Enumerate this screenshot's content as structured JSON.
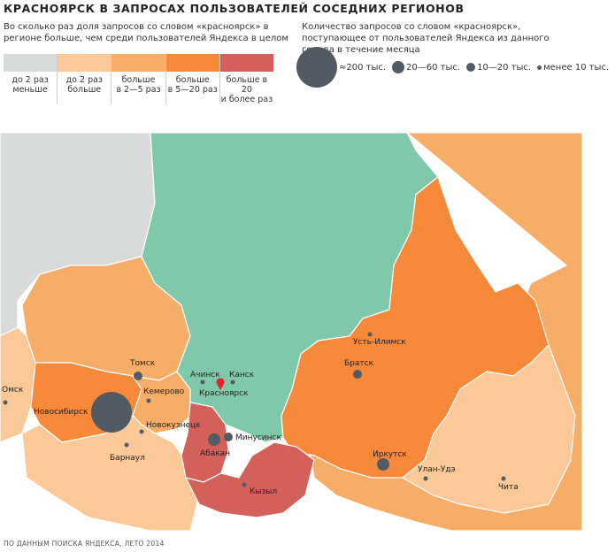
{
  "title": "КРАСНОЯРСК В ЗАПРОСАХ ПОЛЬЗОВАТЕЛЕЙ СОСЕДНИХ РЕГИОНОВ",
  "legend_ratio": {
    "description": "Во сколько раз доля запросов со словом «красноярск» в регионе больше, чем среди пользователей Яндекса в целом",
    "items": [
      {
        "color": "#d9dada",
        "line1": "до 2 раз",
        "line2": "меньше"
      },
      {
        "color": "#fbc898",
        "line1": "до 2 раз",
        "line2": "больше"
      },
      {
        "color": "#f6ad67",
        "line1": "больше",
        "line2": "в 2—5 раз"
      },
      {
        "color": "#f7893a",
        "line1": "больше",
        "line2": "в 5—20 раз"
      },
      {
        "color": "#d4605b",
        "line1": "больше в 20",
        "line2": "и более раз"
      }
    ]
  },
  "legend_size": {
    "description": "Количество запросов со словом «красноярск», поступающее от пользователей Яндекса из данного города в течение месяца",
    "items": [
      {
        "label": "≈200 тыс.",
        "size": "largest"
      },
      {
        "label": "20—60 тыс.",
        "size": "large"
      },
      {
        "label": "10—20 тыс.",
        "size": "medium"
      },
      {
        "label": "менее 10 тыс.",
        "size": "small"
      }
    ]
  },
  "colors": {
    "home_region": "#7fc8a9",
    "home_marker": "#e0242c",
    "city_dot": "#525a64",
    "border": "#ffffff"
  },
  "cities": [
    {
      "id": "omsk",
      "name": "Омск",
      "size": "small"
    },
    {
      "id": "novosibirsk",
      "name": "Новосибирск",
      "size": "largest"
    },
    {
      "id": "tomsk",
      "name": "Томск",
      "size": "medium"
    },
    {
      "id": "kemerovo",
      "name": "Кемерово",
      "size": "small"
    },
    {
      "id": "novokuznetsk",
      "name": "Новокузнецк",
      "size": "small"
    },
    {
      "id": "barnaul",
      "name": "Барнаул",
      "size": "small"
    },
    {
      "id": "achinsk",
      "name": "Ачинск",
      "size": "small"
    },
    {
      "id": "kansk",
      "name": "Канск",
      "size": "small"
    },
    {
      "id": "krasnoyarsk",
      "name": "Красноярск",
      "size": "home"
    },
    {
      "id": "abakan",
      "name": "Абакан",
      "size": "large"
    },
    {
      "id": "minusinsk",
      "name": "Минусинск",
      "size": "medium"
    },
    {
      "id": "kyzyl",
      "name": "Кызыл",
      "size": "small"
    },
    {
      "id": "ust-ilimsk",
      "name": "Усть-Илимск",
      "size": "small"
    },
    {
      "id": "bratsk",
      "name": "Братск",
      "size": "medium"
    },
    {
      "id": "irkutsk",
      "name": "Иркутск",
      "size": "large"
    },
    {
      "id": "ulan-ude",
      "name": "Улан-Удэ",
      "size": "small"
    },
    {
      "id": "chita",
      "name": "Чита",
      "size": "small"
    }
  ],
  "footer": "ПО ДАННЫМ ПОИСКА ЯНДЕКСА, ЛЕТО 2014"
}
